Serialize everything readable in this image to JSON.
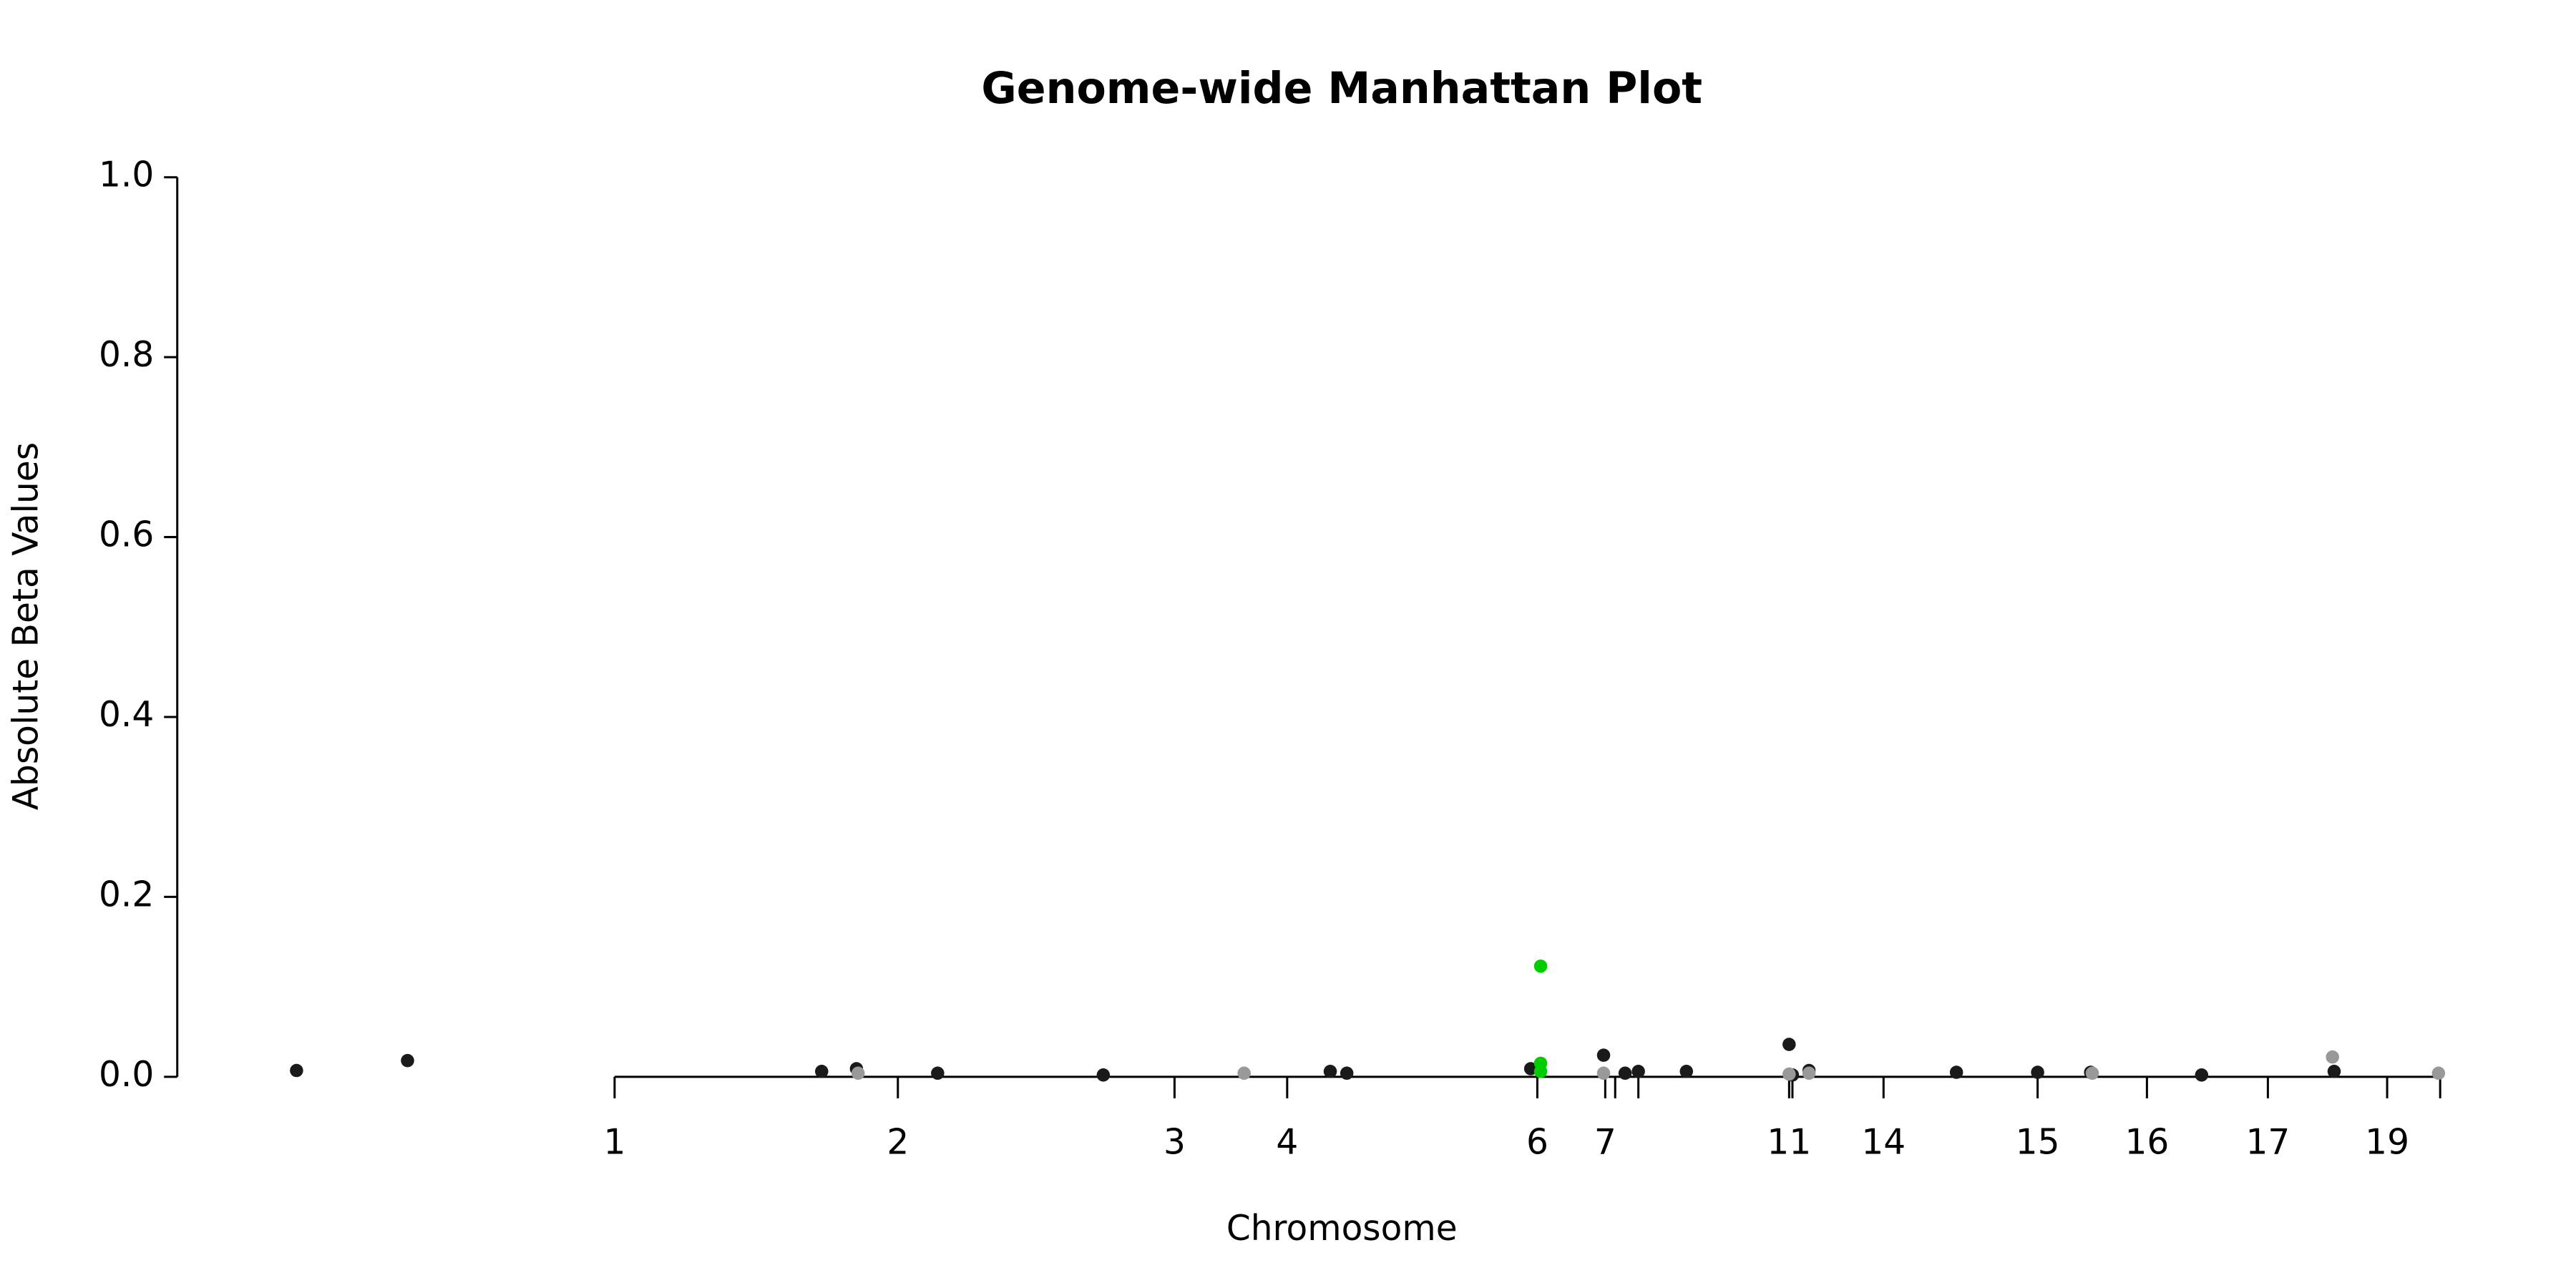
{
  "chart_data": {
    "type": "scatter",
    "title": "Genome-wide Manhattan Plot",
    "x_label": "Chromosome",
    "y_label": "Absolute Beta Values",
    "xlim": [
      -264,
      1110
    ],
    "ylim": [
      0,
      1
    ],
    "yticks": [
      {
        "value": 0,
        "label": "0.0"
      },
      {
        "value": 0.2,
        "label": "0.2"
      },
      {
        "value": 0.4,
        "label": "0.4"
      },
      {
        "value": 0.6,
        "label": "0.6"
      },
      {
        "value": 0.8,
        "label": "0.8"
      },
      {
        "value": 1,
        "label": "1.0"
      }
    ],
    "xticks": [
      {
        "value": 0,
        "label": "1"
      },
      {
        "value": 171,
        "label": "2"
      },
      {
        "value": 338,
        "label": "3"
      },
      {
        "value": 406,
        "label": "4"
      },
      {
        "value": 557,
        "label": "6"
      },
      {
        "value": 598,
        "label": "7"
      },
      {
        "value": 604,
        "label": null
      },
      {
        "value": 618,
        "label": null
      },
      {
        "value": 709,
        "label": "11"
      },
      {
        "value": 711,
        "label": null
      },
      {
        "value": 766,
        "label": "14"
      },
      {
        "value": 859,
        "label": "15"
      },
      {
        "value": 925,
        "label": "16"
      },
      {
        "value": 998,
        "label": "17"
      },
      {
        "value": 1070,
        "label": "19"
      },
      {
        "value": 1102,
        "label": null
      }
    ],
    "series": [
      {
        "color": "#1a1a1a",
        "x": [
          -192,
          -125,
          125,
          146,
          195,
          295,
          432,
          442,
          553,
          597,
          610,
          618,
          647,
          709,
          711,
          721,
          810,
          859,
          891,
          958,
          1038
        ],
        "values": [
          0.007,
          0.018,
          0.006,
          0.009,
          0.004,
          0.002,
          0.006,
          0.004,
          0.009,
          0.024,
          0.004,
          0.006,
          0.006,
          0.036,
          0.002,
          0.007,
          0.005,
          0.005,
          0.005,
          0.002,
          0.006
        ]
      },
      {
        "color": "#999999",
        "x": [
          147,
          380,
          597,
          709,
          721,
          892,
          1037,
          1101
        ],
        "values": [
          0.004,
          0.004,
          0.004,
          0.003,
          0.004,
          0.004,
          0.022,
          0.004
        ]
      },
      {
        "color": "#00cc00",
        "x": [
          559,
          559,
          559
        ],
        "values": [
          0.123,
          0.015,
          0.006
        ]
      }
    ]
  }
}
